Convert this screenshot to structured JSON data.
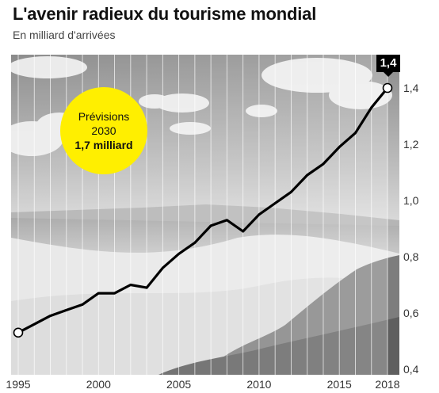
{
  "title": "L'avenir radieux du tourisme mondial",
  "subtitle": "En milliard d'arrivées",
  "callout": {
    "line1": "Prévisions",
    "line2": "2030",
    "line3": "1,7 milliard"
  },
  "colors": {
    "callout": "#ffef00",
    "line": "#000000",
    "endlabel_bg": "#000000"
  },
  "chart_data": {
    "type": "line",
    "title": "L'avenir radieux du tourisme mondial",
    "ylabel": "En milliard d'arrivées",
    "xlim": [
      1995,
      2018
    ],
    "ylim": [
      0.4,
      1.4
    ],
    "x_ticks": [
      1995,
      2000,
      2005,
      2010,
      2015,
      2018
    ],
    "x_tick_labels": [
      "1995",
      "2000",
      "2005",
      "2010",
      "2015",
      "2018"
    ],
    "y_ticks": [
      0.4,
      0.6,
      0.8,
      1.0,
      1.2,
      1.4
    ],
    "y_tick_labels": [
      "0,4",
      "0,6",
      "0,8",
      "1,0",
      "1,2",
      "1,4"
    ],
    "x": [
      1995,
      1996,
      1997,
      1998,
      1999,
      2000,
      2001,
      2002,
      2003,
      2004,
      2005,
      2006,
      2007,
      2008,
      2009,
      2010,
      2011,
      2012,
      2013,
      2014,
      2015,
      2016,
      2017,
      2018
    ],
    "values": [
      0.53,
      0.56,
      0.59,
      0.61,
      0.63,
      0.67,
      0.67,
      0.7,
      0.69,
      0.76,
      0.81,
      0.85,
      0.91,
      0.93,
      0.89,
      0.95,
      0.99,
      1.03,
      1.09,
      1.13,
      1.19,
      1.24,
      1.33,
      1.4
    ],
    "end_label": "1,4",
    "grid": true,
    "background": "black-and-white beach photograph"
  }
}
